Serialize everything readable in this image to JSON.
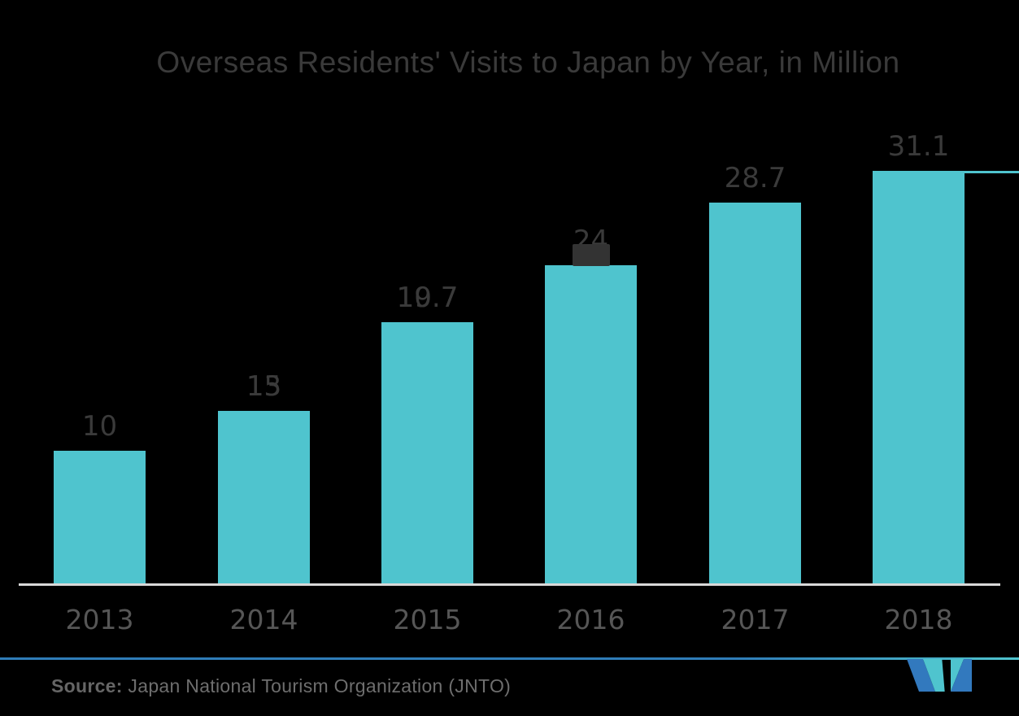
{
  "chart_data": {
    "type": "bar",
    "title": "Overseas Residents' Visits to Japan by Year, in Million",
    "categories": [
      "2013",
      "2014",
      "2015",
      "2016",
      "2017",
      "2018"
    ],
    "values": [
      10,
      13,
      19.7,
      24,
      28.7,
      31.1
    ],
    "value_labels": [
      "10",
      "13",
      "19.7",
      "24",
      "28.7",
      "31.1"
    ],
    "ghost_overlap_labels": [
      "",
      "15",
      "10.7",
      "",
      "",
      ""
    ],
    "ghost_blob_under_label": [
      false,
      false,
      false,
      true,
      false,
      false
    ],
    "xlabel": "",
    "ylabel": "",
    "ylim": [
      0,
      31.1
    ],
    "grid": "off",
    "legend": "none",
    "bar_color": "#4FC4CE",
    "note": "top of 2018 bar extends as a thin teal reference line to the right edge"
  },
  "source": {
    "label": "Source:",
    "text": " Japan National Tourism Organization (JNTO)"
  },
  "colors": {
    "background": "#000000",
    "bar": "#4FC4CE",
    "title_text": "#3A3A3A",
    "value_text": "#3A3A3A",
    "axis_text": "#565656",
    "source_text": "#6E6E6E",
    "baseline": "#D9D9D9",
    "footer_divider_blue": "#2F7CB8",
    "logo_blue": "#3279BE",
    "logo_teal": "#4FC4CE"
  }
}
